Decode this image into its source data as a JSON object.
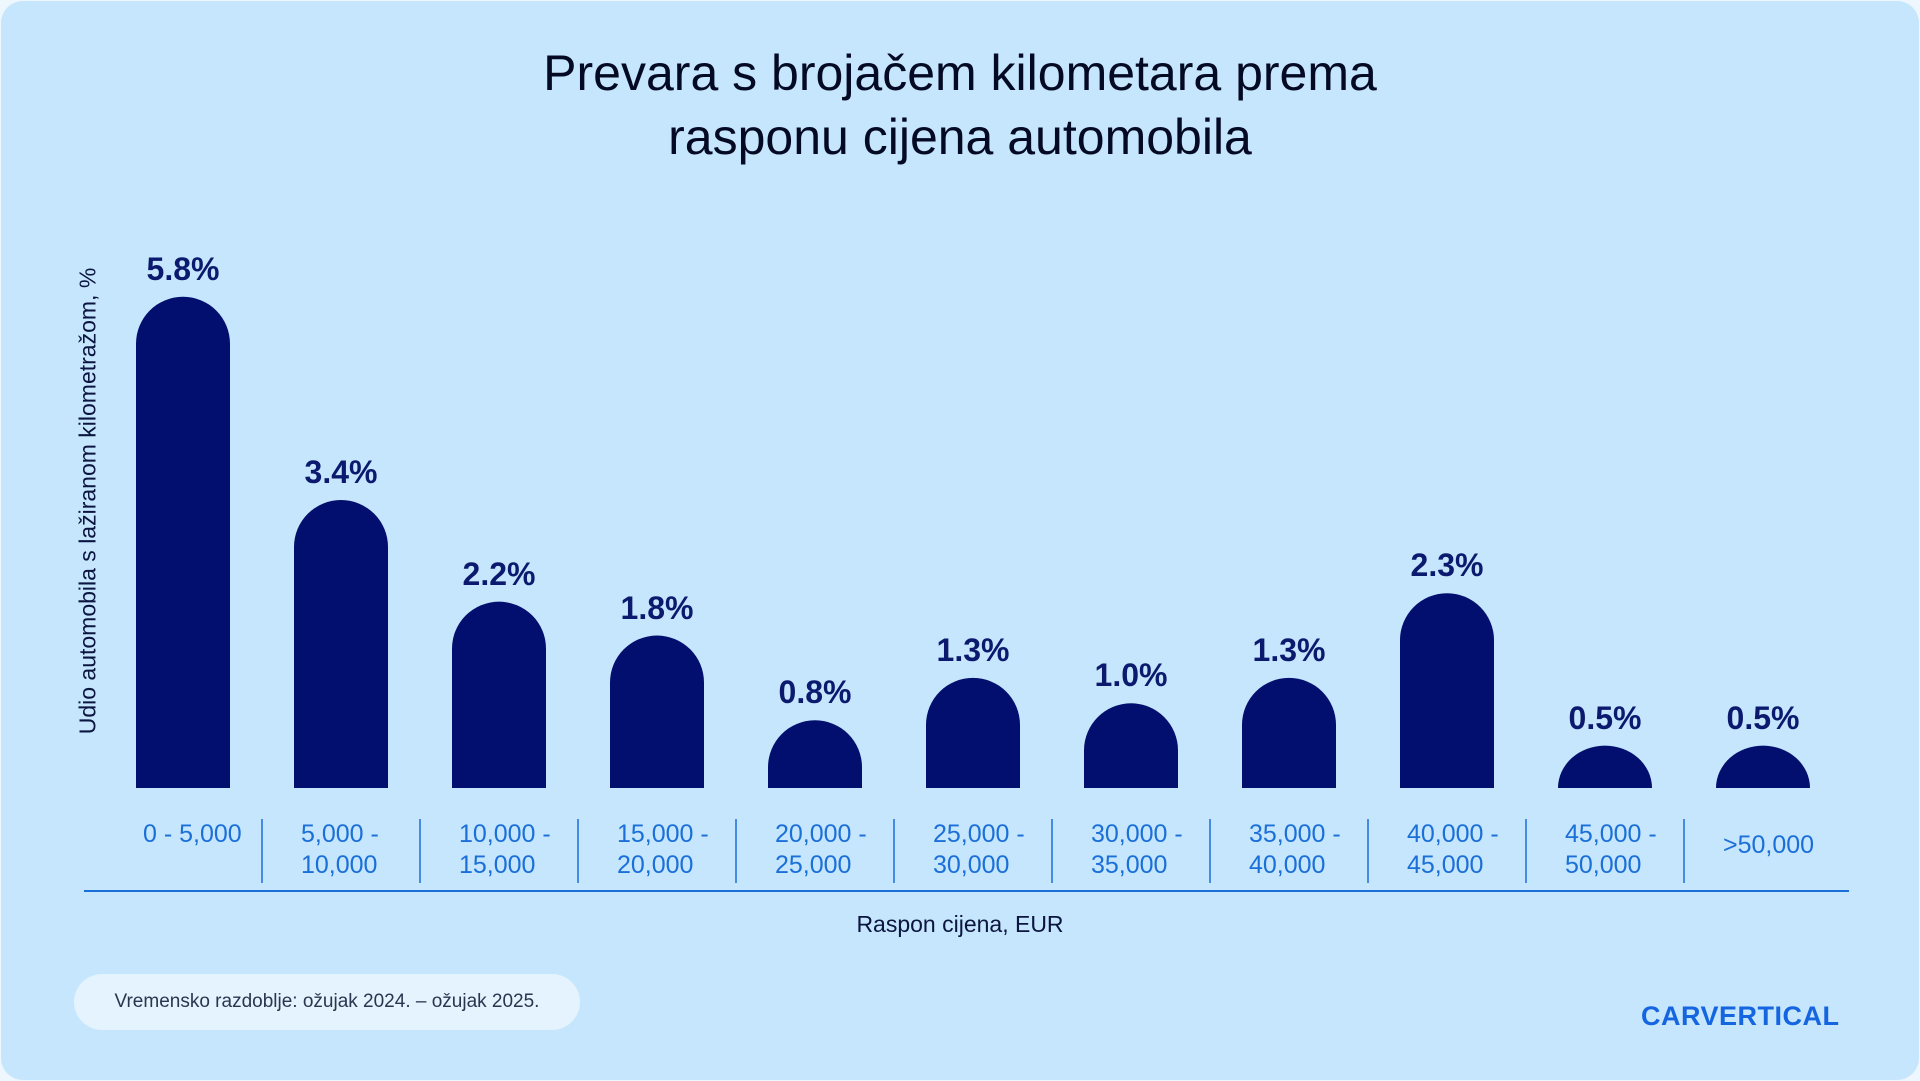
{
  "chart_data": {
    "type": "bar",
    "title": "Prevara s brojačem kilometara prema\nrasponu cijena automobila",
    "y_label": "Udio automobila s lažiranom kilometražom, %",
    "x_label": "Raspon cijena, EUR",
    "categories": [
      "0 -\n5,000",
      "5,000 -\n10,000",
      "10,000 -\n15,000",
      "15,000 -\n20,000",
      "20,000 -\n25,000",
      "25,000 -\n30,000",
      "30,000 -\n35,000",
      "35,000 -\n40,000",
      "40,000 -\n45,000",
      "45,000 -\n50,000",
      ">50,000"
    ],
    "values": [
      5.8,
      3.4,
      2.2,
      1.8,
      0.8,
      1.3,
      1.0,
      1.3,
      2.3,
      0.5,
      0.5
    ],
    "value_labels": [
      "5.8%",
      "3.4%",
      "2.2%",
      "1.8%",
      "0.8%",
      "1.3%",
      "1.0%",
      "1.3%",
      "2.3%",
      "0.5%",
      "0.5%"
    ],
    "color": "#020f6e",
    "footnote": "Vremensko razdoblje: ožujak 2024. – ožujak 2025.",
    "logo": "CARVERTICAL"
  }
}
